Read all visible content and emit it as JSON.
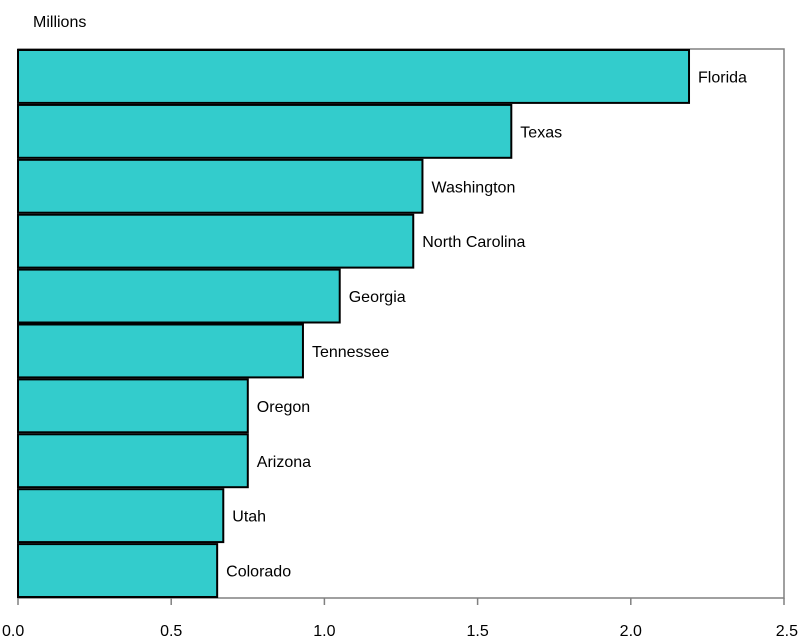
{
  "chart_data": {
    "type": "bar",
    "orientation": "horizontal",
    "unit_label": "Millions",
    "categories": [
      "Florida",
      "Texas",
      "Washington",
      "North Carolina",
      "Georgia",
      "Tennessee",
      "Oregon",
      "Arizona",
      "Utah",
      "Colorado"
    ],
    "values": [
      2.19,
      1.61,
      1.32,
      1.29,
      1.05,
      0.93,
      0.75,
      0.75,
      0.67,
      0.65
    ],
    "xlim": [
      0,
      2.5
    ],
    "x_ticks": [
      "0.0",
      "0.5",
      "1.0",
      "1.5",
      "2.0",
      "2.5"
    ],
    "x_tick_values": [
      0,
      0.5,
      1.0,
      1.5,
      2.0,
      2.5
    ],
    "grid": false,
    "legend": "none",
    "colors": {
      "bar_fill": "#33CCCC",
      "bar_stroke": "#000000",
      "frame": "#808080"
    }
  }
}
